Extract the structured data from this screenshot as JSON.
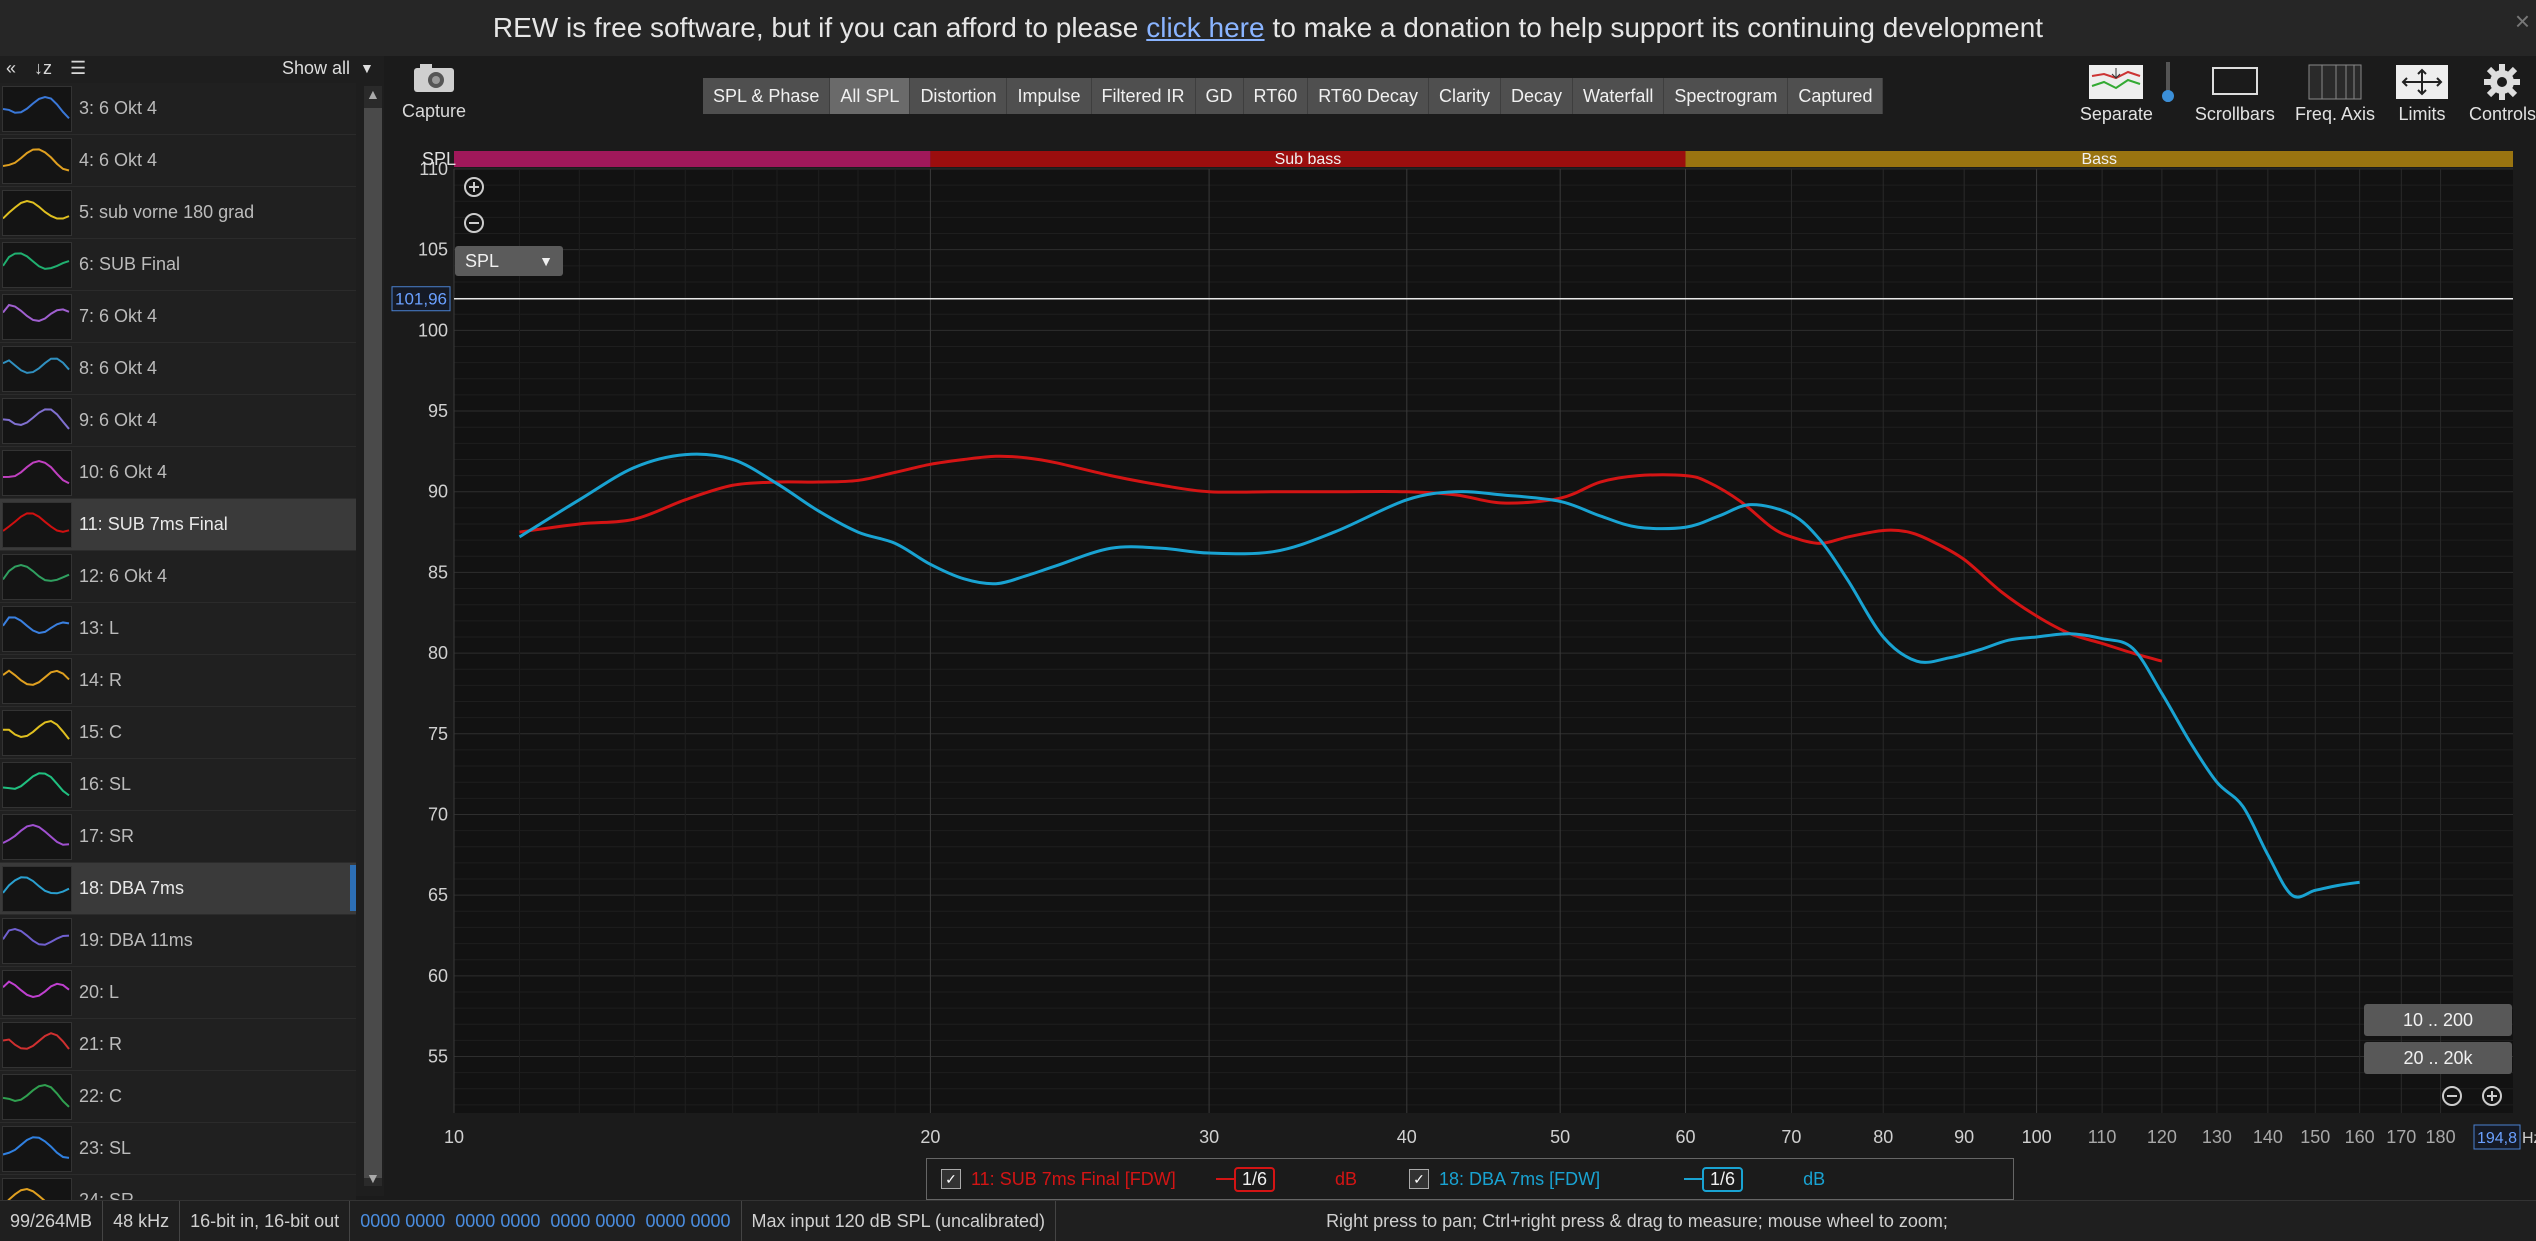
{
  "banner": {
    "before": "REW is free software, but if you can afford to please",
    "link": "click here",
    "after": "to make a donation to help support its continuing development"
  },
  "sidebar": {
    "show_all": "Show all",
    "items": [
      {
        "label": "3: 6 Okt 4",
        "color": "#3a78d8"
      },
      {
        "label": "4: 6 Okt 4",
        "color": "#e0a020"
      },
      {
        "label": "5: sub vorne 180 grad",
        "color": "#e0c020"
      },
      {
        "label": "6: SUB Final",
        "color": "#20b070"
      },
      {
        "label": "7: 6 Okt 4",
        "color": "#a060d0"
      },
      {
        "label": "8: 6 Okt 4",
        "color": "#3090c0"
      },
      {
        "label": "9: 6 Okt 4",
        "color": "#8070d0"
      },
      {
        "label": "10: 6 Okt 4",
        "color": "#c040c0"
      },
      {
        "label": "11: SUB 7ms Final",
        "color": "#d01010",
        "selected": true
      },
      {
        "label": "12: 6 Okt 4",
        "color": "#30a060"
      },
      {
        "label": "13: L",
        "color": "#3a80e0"
      },
      {
        "label": "14: R",
        "color": "#e0a020"
      },
      {
        "label": "15: C",
        "color": "#e0c020"
      },
      {
        "label": "16: SL",
        "color": "#20c080"
      },
      {
        "label": "17: SR",
        "color": "#a050d0"
      },
      {
        "label": "18: DBA 7ms",
        "color": "#2aa0d0",
        "selected": true,
        "marker": "#2d6fb5"
      },
      {
        "label": "19: DBA 11ms",
        "color": "#7060d0"
      },
      {
        "label": "20: L",
        "color": "#c040d0"
      },
      {
        "label": "21: R",
        "color": "#d03030"
      },
      {
        "label": "22: C",
        "color": "#30a050"
      },
      {
        "label": "23: SL",
        "color": "#3080e0"
      },
      {
        "label": "24: SR",
        "color": "#e0a020"
      }
    ]
  },
  "toolbar": {
    "capture_label": "Capture",
    "tabs": [
      "SPL & Phase",
      "All SPL",
      "Distortion",
      "Impulse",
      "Filtered IR",
      "GD",
      "RT60",
      "RT60 Decay",
      "Clarity",
      "Decay",
      "Waterfall",
      "Spectrogram",
      "Captured"
    ],
    "active_tab": "All SPL",
    "right": [
      "Separate",
      "Scrollbars",
      "Freq. Axis",
      "Limits",
      "Controls"
    ]
  },
  "chart": {
    "ylabel": "SPL",
    "select_value": "SPL",
    "cursor_value": "101,96",
    "freq_readout": "194,8",
    "hz_unit": "Hz",
    "zoom_10_200": "10 .. 200",
    "zoom_20_20k": "20 .. 20k",
    "bands": [
      {
        "label": "",
        "from": 11,
        "to": 20,
        "color": "#a0185a"
      },
      {
        "label": "Sub bass",
        "from": 20,
        "to": 60,
        "color": "#9b0e0e"
      },
      {
        "label": "Bass",
        "from": 60,
        "to": 200,
        "color": "#9a7410"
      }
    ]
  },
  "chart_data": {
    "type": "line",
    "xscale": "log",
    "xlim": [
      10,
      200
    ],
    "ylim": [
      51.5,
      110
    ],
    "x_ticks": [
      10,
      20,
      30,
      40,
      50,
      60,
      70,
      80,
      90,
      100,
      110,
      120,
      130,
      140,
      150,
      160,
      170,
      180
    ],
    "y_ticks": [
      55,
      60,
      65,
      70,
      75,
      80,
      85,
      90,
      95,
      100,
      105,
      110
    ],
    "ylabel": "SPL",
    "cursor_y": 101.96,
    "series": [
      {
        "name": "11: SUB 7ms Final [FDW]",
        "color": "#d41414",
        "x": [
          11,
          12,
          13,
          14,
          15,
          16,
          17,
          18,
          19,
          20,
          21,
          22,
          23,
          24,
          26,
          28,
          30,
          33,
          36,
          40,
          43,
          46,
          50,
          53,
          56,
          60,
          62,
          65,
          68,
          70,
          73,
          76,
          80,
          83,
          86,
          90,
          95,
          100,
          105,
          110,
          115,
          120
        ],
        "y": [
          87.5,
          88.0,
          88.3,
          89.5,
          90.4,
          90.6,
          90.6,
          90.7,
          91.2,
          91.7,
          92.0,
          92.2,
          92.1,
          91.8,
          91.0,
          90.4,
          90.0,
          90.0,
          90.0,
          90.0,
          89.8,
          89.3,
          89.6,
          90.6,
          91.0,
          91.0,
          90.6,
          89.4,
          87.8,
          87.2,
          86.8,
          87.2,
          87.6,
          87.5,
          86.9,
          85.8,
          83.8,
          82.3,
          81.2,
          80.6,
          80.0,
          79.5
        ]
      },
      {
        "name": "18: DBA 7ms [FDW]",
        "color": "#19a3d2",
        "x": [
          11,
          12,
          13,
          14,
          15,
          16,
          17,
          18,
          19,
          20,
          21,
          22,
          23,
          24,
          26,
          28,
          30,
          33,
          36,
          40,
          43,
          46,
          50,
          53,
          56,
          60,
          63,
          66,
          70,
          73,
          76,
          80,
          84,
          88,
          92,
          96,
          100,
          105,
          110,
          115,
          120,
          125,
          130,
          135,
          140,
          145,
          150,
          155,
          160
        ],
        "y": [
          87.2,
          89.5,
          91.5,
          92.3,
          92.0,
          90.5,
          88.8,
          87.5,
          86.8,
          85.5,
          84.6,
          84.3,
          84.8,
          85.4,
          86.5,
          86.5,
          86.2,
          86.3,
          87.5,
          89.5,
          90.0,
          89.8,
          89.4,
          88.5,
          87.8,
          87.8,
          88.5,
          89.2,
          88.6,
          87.0,
          84.5,
          81.0,
          79.5,
          79.7,
          80.2,
          80.8,
          81.0,
          81.2,
          80.9,
          80.3,
          77.5,
          74.5,
          72.0,
          70.5,
          67.5,
          65.0,
          65.3,
          65.6,
          65.8
        ]
      }
    ]
  },
  "legend": [
    {
      "name": "11: SUB 7ms Final [FDW]",
      "smoothing": "1/6",
      "unit": "dB",
      "color": "#d41414"
    },
    {
      "name": "18: DBA 7ms [FDW]",
      "smoothing": "1/6",
      "unit": "dB",
      "color": "#19a3d2"
    }
  ],
  "status": {
    "memory": "99/264MB",
    "rate": "48 kHz",
    "bits": "16-bit in, 16-bit out",
    "levels": "0000 0000  0000 0000  0000 0000  0000 0000",
    "max_input": "Max input 120 dB SPL (uncalibrated)",
    "hint": "Right press to pan; Ctrl+right press & drag to measure; mouse wheel to zoom;"
  }
}
